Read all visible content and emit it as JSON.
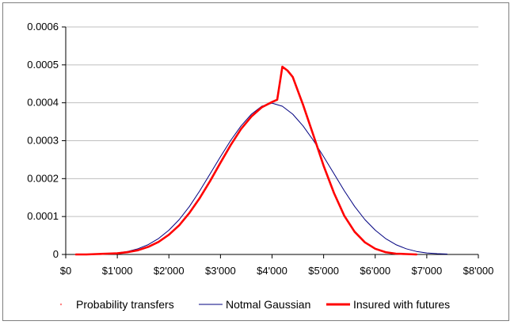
{
  "chart_data": {
    "type": "line",
    "title": "",
    "xlabel": "",
    "ylabel": "",
    "xlim": [
      0,
      8000
    ],
    "ylim": [
      0,
      0.0006
    ],
    "x_ticks": [
      {
        "value": 0,
        "label": "$0"
      },
      {
        "value": 1000,
        "label": "$1'000"
      },
      {
        "value": 2000,
        "label": "$2'000"
      },
      {
        "value": 3000,
        "label": "$3'000"
      },
      {
        "value": 4000,
        "label": "$4'000"
      },
      {
        "value": 5000,
        "label": "$5'000"
      },
      {
        "value": 6000,
        "label": "$6'000"
      },
      {
        "value": 7000,
        "label": "$7'000"
      },
      {
        "value": 8000,
        "label": "$8'000"
      }
    ],
    "y_ticks": [
      {
        "value": 0,
        "label": "0"
      },
      {
        "value": 0.0001,
        "label": "0.0001"
      },
      {
        "value": 0.0002,
        "label": "0.0002"
      },
      {
        "value": 0.0003,
        "label": "0.0003"
      },
      {
        "value": 0.0004,
        "label": "0.0004"
      },
      {
        "value": 0.0005,
        "label": "0.0005"
      },
      {
        "value": 0.0006,
        "label": "0.0006"
      }
    ],
    "grid": "horizontal",
    "legend_position": "bottom",
    "series": [
      {
        "name": "Probability transfers",
        "style": "dots",
        "color": "#ff8080",
        "x": [
          200,
          400,
          600,
          800,
          1000,
          1200,
          1400,
          1600,
          1800,
          2000,
          2200,
          2400,
          2600,
          2800,
          3000,
          3200,
          3400,
          3600,
          3800,
          4000,
          4100,
          4200,
          4300,
          4400,
          4600,
          4800,
          5000,
          5200,
          5400,
          5600,
          5800,
          6000,
          6200,
          6400,
          6600,
          6800
        ],
        "y": [
          0,
          0,
          1e-06,
          2e-06,
          3e-06,
          6e-06,
          1.1e-05,
          2e-05,
          3.3e-05,
          5.2e-05,
          7.7e-05,
          0.00011,
          0.000149,
          0.000194,
          0.000242,
          0.000289,
          0.000331,
          0.000364,
          0.000388,
          0.000402,
          0.000408,
          0.000495,
          0.000485,
          0.000468,
          0.000395,
          0.000315,
          0.000234,
          0.000162,
          0.000102,
          6e-05,
          3.2e-05,
          1.5e-05,
          6e-06,
          2e-06,
          1e-06,
          0
        ]
      },
      {
        "name": "Notmal Gaussian",
        "style": "thin-line",
        "color": "#000080",
        "x": [
          200,
          400,
          600,
          800,
          1000,
          1200,
          1400,
          1600,
          1800,
          2000,
          2200,
          2400,
          2600,
          2800,
          3000,
          3200,
          3400,
          3600,
          3800,
          4000,
          4200,
          4400,
          4600,
          4800,
          5000,
          5200,
          5400,
          5600,
          5800,
          6000,
          6200,
          6400,
          6600,
          6800,
          7000,
          7200,
          7400
        ],
        "y": [
          0,
          0,
          1e-06,
          2e-06,
          4e-06,
          8e-06,
          1.5e-05,
          2.6e-05,
          4.2e-05,
          6.4e-05,
          9.2e-05,
          0.000127,
          0.000168,
          0.000213,
          0.000258,
          0.000301,
          0.000339,
          0.00037,
          0.000391,
          0.000399,
          0.000391,
          0.00037,
          0.000339,
          0.000301,
          0.000258,
          0.000213,
          0.000168,
          0.000127,
          9.2e-05,
          6.4e-05,
          4.2e-05,
          2.6e-05,
          1.5e-05,
          8e-06,
          4e-06,
          2e-06,
          1e-06
        ]
      },
      {
        "name": "Insured with futures",
        "style": "thick-line",
        "color": "#ff0000",
        "x": [
          200,
          400,
          600,
          800,
          1000,
          1200,
          1400,
          1600,
          1800,
          2000,
          2200,
          2400,
          2600,
          2800,
          3000,
          3200,
          3400,
          3600,
          3800,
          4000,
          4100,
          4200,
          4300,
          4400,
          4600,
          4800,
          5000,
          5200,
          5400,
          5600,
          5800,
          6000,
          6200,
          6400,
          6600,
          6800
        ],
        "y": [
          0,
          0,
          1e-06,
          2e-06,
          3e-06,
          6e-06,
          1.1e-05,
          2e-05,
          3.3e-05,
          5.2e-05,
          7.7e-05,
          0.00011,
          0.000149,
          0.000194,
          0.000242,
          0.000289,
          0.000331,
          0.000364,
          0.000388,
          0.000402,
          0.000408,
          0.000495,
          0.000485,
          0.000468,
          0.000395,
          0.000315,
          0.000234,
          0.000162,
          0.000102,
          6e-05,
          3.2e-05,
          1.5e-05,
          6e-06,
          2e-06,
          1e-06,
          0
        ]
      }
    ]
  }
}
